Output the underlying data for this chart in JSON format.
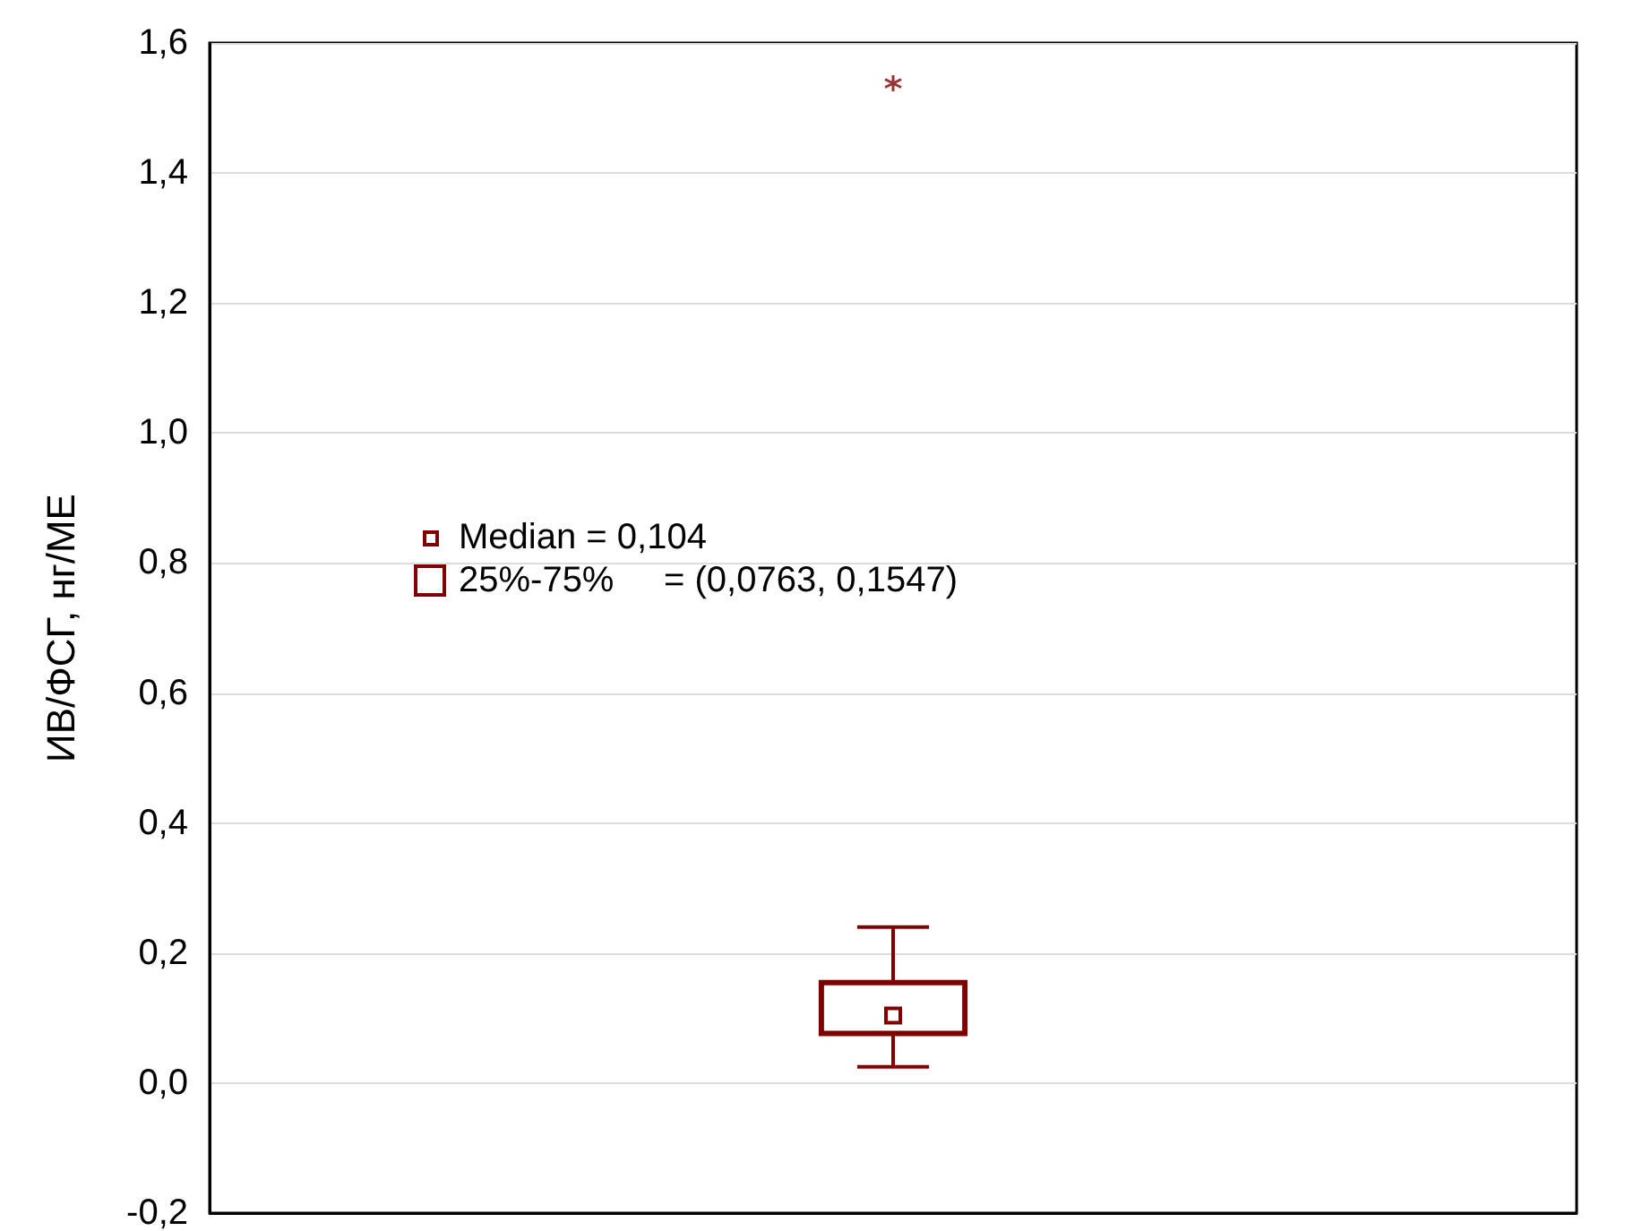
{
  "chart_data": {
    "type": "box",
    "ylabel": "ИВ/ФСГ, нг/МЕ",
    "categories": [
      null
    ],
    "series": [
      {
        "color": "#800000",
        "boxes": [
          {
            "low": 0.025,
            "q1": 0.0763,
            "median": 0.104,
            "q3": 0.1547,
            "high": 0.24,
            "outliers": [
              1.538
            ]
          }
        ]
      }
    ],
    "annotations": [
      "Median = 0,104",
      "25%-75%     = (0,0763, 0,1547)"
    ],
    "grid": "y",
    "ylim": [
      -0.2,
      1.6
    ],
    "yticks": [
      {
        "value": -0.2,
        "label": "-0,2"
      },
      {
        "value": 0,
        "label": "0,0"
      },
      {
        "value": 0.2,
        "label": "0,2"
      },
      {
        "value": 0.4,
        "label": "0,4"
      },
      {
        "value": 0.6,
        "label": "0,6"
      },
      {
        "value": 0.8,
        "label": "0,8"
      },
      {
        "value": 1,
        "label": "1,0"
      },
      {
        "value": 1.2,
        "label": "1,2"
      },
      {
        "value": 1.4,
        "label": "1,4"
      },
      {
        "value": 1.6,
        "label": "1,6"
      }
    ]
  }
}
